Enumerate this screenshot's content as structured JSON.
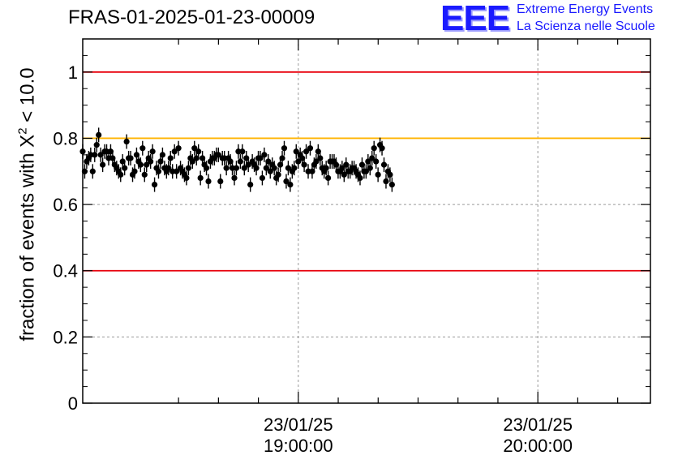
{
  "header": {
    "run_title": "FRAS-01-2025-01-23-00009",
    "logo_text": "EEE",
    "logo_line1": "Extreme Energy Events",
    "logo_line2": "La Scienza nelle Scuole"
  },
  "colors": {
    "limit_red": "#e8000b",
    "limit_orange": "#ffb300",
    "points": "#000000",
    "grid": "#9a9a9a",
    "logo_blue": "#1a1aff"
  },
  "chart_data": {
    "type": "scatter",
    "title": "FRAS-01-2025-01-23-00009",
    "ylabel_prefix": "fraction of events with X",
    "ylabel_sup": "2",
    "ylabel_suffix": " < 10.0",
    "ylim": [
      0,
      1.1
    ],
    "yticks": [
      0,
      0.2,
      0.4,
      0.6,
      0.8,
      1
    ],
    "ytick_labels": [
      "0",
      "0.2",
      "0.4",
      "0.6",
      "0.8",
      "1"
    ],
    "xlim_hours": [
      18.1,
      20.47
    ],
    "xticks": [
      {
        "hour": 19.0,
        "date": "23/01/25",
        "time": "19:00:00"
      },
      {
        "hour": 20.0,
        "date": "23/01/25",
        "time": "20:00:00"
      }
    ],
    "reference_lines": [
      {
        "y": 1.0,
        "color": "red"
      },
      {
        "y": 0.8,
        "color": "orange"
      },
      {
        "y": 0.4,
        "color": "red"
      }
    ],
    "grid": true,
    "y_error": 0.022,
    "series": [
      {
        "x_start_hour": 18.1,
        "x_step_hours": 0.00833,
        "values": [
          0.76,
          0.7,
          0.73,
          0.74,
          0.75,
          0.7,
          0.75,
          0.78,
          0.81,
          0.75,
          0.72,
          0.76,
          0.76,
          0.74,
          0.76,
          0.74,
          0.72,
          0.71,
          0.7,
          0.69,
          0.73,
          0.71,
          0.79,
          0.74,
          0.74,
          0.69,
          0.7,
          0.75,
          0.73,
          0.72,
          0.77,
          0.69,
          0.72,
          0.74,
          0.73,
          0.76,
          0.66,
          0.71,
          0.7,
          0.73,
          0.75,
          0.71,
          0.7,
          0.71,
          0.74,
          0.7,
          0.76,
          0.7,
          0.77,
          0.71,
          0.7,
          0.69,
          0.68,
          0.71,
          0.74,
          0.73,
          0.77,
          0.74,
          0.76,
          0.68,
          0.74,
          0.72,
          0.71,
          0.67,
          0.73,
          0.74,
          0.74,
          0.75,
          0.75,
          0.67,
          0.74,
          0.74,
          0.71,
          0.74,
          0.73,
          0.71,
          0.68,
          0.71,
          0.76,
          0.73,
          0.76,
          0.71,
          0.74,
          0.72,
          0.66,
          0.73,
          0.72,
          0.71,
          0.74,
          0.74,
          0.68,
          0.75,
          0.71,
          0.73,
          0.7,
          0.72,
          0.71,
          0.68,
          0.69,
          0.72,
          0.74,
          0.77,
          0.67,
          0.71,
          0.66,
          0.7,
          0.71,
          0.76,
          0.73,
          0.75,
          0.74,
          0.72,
          0.76,
          0.7,
          0.77,
          0.7,
          0.72,
          0.73,
          0.76,
          0.74,
          0.71,
          0.7,
          0.71,
          0.68,
          0.73,
          0.73,
          0.73,
          0.72,
          0.7,
          0.7,
          0.71,
          0.69,
          0.72,
          0.7,
          0.7,
          0.71,
          0.71,
          0.7,
          0.69,
          0.68,
          0.72,
          0.7,
          0.7,
          0.73,
          0.71,
          0.74,
          0.77,
          0.73,
          0.69,
          0.78,
          0.77,
          0.72,
          0.67,
          0.7,
          0.69,
          0.66
        ]
      }
    ]
  }
}
